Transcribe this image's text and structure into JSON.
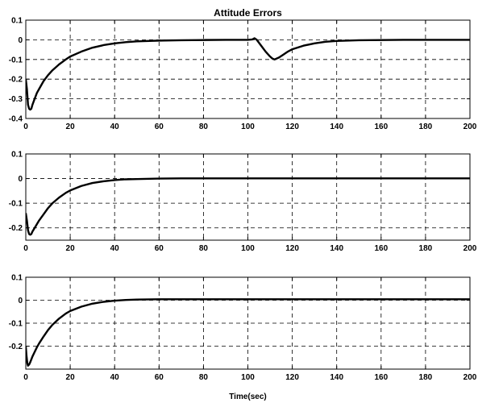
{
  "chart_data": [
    {
      "type": "line",
      "title": "Attitude Errors",
      "xlabel": "",
      "ylabel": "",
      "xlim": [
        0,
        200
      ],
      "ylim": [
        -0.4,
        0.1
      ],
      "xticks": [
        0,
        20,
        40,
        60,
        80,
        100,
        120,
        140,
        160,
        180,
        200
      ],
      "yticks": [
        0.1,
        0,
        -0.1,
        -0.2,
        -0.3,
        -0.4
      ],
      "ytick_labels": [
        "0.1",
        "0",
        "-0.1",
        "-0.2",
        "-0.3",
        "-0.4"
      ],
      "grid": true,
      "series": [
        {
          "color": "#000000",
          "x": [
            0,
            0.5,
            1,
            1.5,
            2,
            2.5,
            3,
            4,
            5,
            6,
            8,
            10,
            12,
            15,
            18,
            20,
            25,
            30,
            35,
            40,
            45,
            50,
            60,
            70,
            80,
            90,
            100,
            102,
            103,
            104,
            106,
            108,
            110,
            111,
            112,
            114,
            116,
            118,
            120,
            125,
            130,
            135,
            140,
            150,
            160,
            170,
            180,
            190,
            200
          ],
          "y": [
            -0.2,
            -0.25,
            -0.33,
            -0.35,
            -0.355,
            -0.35,
            -0.33,
            -0.3,
            -0.27,
            -0.25,
            -0.21,
            -0.18,
            -0.155,
            -0.125,
            -0.1,
            -0.085,
            -0.06,
            -0.04,
            -0.027,
            -0.018,
            -0.012,
            -0.008,
            -0.004,
            -0.002,
            -0.001,
            0,
            0,
            0.002,
            0.008,
            0,
            -0.03,
            -0.06,
            -0.085,
            -0.095,
            -0.1,
            -0.09,
            -0.075,
            -0.06,
            -0.048,
            -0.03,
            -0.018,
            -0.01,
            -0.006,
            -0.002,
            -0.001,
            0,
            0,
            0,
            0
          ]
        }
      ]
    },
    {
      "type": "line",
      "title": "",
      "xlabel": "",
      "ylabel": "",
      "xlim": [
        0,
        200
      ],
      "ylim": [
        -0.25,
        0.1
      ],
      "xticks": [
        0,
        20,
        40,
        60,
        80,
        100,
        120,
        140,
        160,
        180,
        200
      ],
      "yticks": [
        0.1,
        0,
        -0.1,
        -0.2
      ],
      "ytick_labels": [
        "0.1",
        "0",
        "-0.1",
        "-0.2"
      ],
      "grid": true,
      "series": [
        {
          "color": "#000000",
          "x": [
            0,
            0.5,
            1,
            1.5,
            2,
            2.5,
            3,
            4,
            5,
            6,
            8,
            10,
            12,
            15,
            18,
            20,
            25,
            30,
            35,
            40,
            45,
            50,
            60,
            70,
            80,
            100,
            120,
            140,
            160,
            180,
            200
          ],
          "y": [
            -0.14,
            -0.17,
            -0.21,
            -0.225,
            -0.228,
            -0.225,
            -0.215,
            -0.2,
            -0.185,
            -0.17,
            -0.145,
            -0.12,
            -0.1,
            -0.077,
            -0.058,
            -0.048,
            -0.03,
            -0.018,
            -0.011,
            -0.006,
            -0.003,
            -0.002,
            0,
            0.001,
            0.001,
            0.001,
            0.001,
            0.001,
            0.001,
            0.001,
            0.001
          ]
        }
      ]
    },
    {
      "type": "line",
      "title": "",
      "xlabel": "Time(sec)",
      "ylabel": "",
      "xlim": [
        0,
        200
      ],
      "ylim": [
        -0.3,
        0.1
      ],
      "xticks": [
        0,
        20,
        40,
        60,
        80,
        100,
        120,
        140,
        160,
        180,
        200
      ],
      "yticks": [
        0.1,
        0,
        -0.1,
        -0.2
      ],
      "ytick_labels": [
        "0.1",
        "0",
        "-0.1",
        "-0.2"
      ],
      "grid": true,
      "series": [
        {
          "color": "#000000",
          "x": [
            0,
            0.3,
            0.7,
            1,
            1.5,
            2,
            3,
            4,
            5,
            6,
            8,
            10,
            12,
            15,
            18,
            20,
            25,
            30,
            35,
            40,
            45,
            50,
            60,
            70,
            80,
            100,
            120,
            140,
            160,
            180,
            200
          ],
          "y": [
            -0.2,
            -0.24,
            -0.275,
            -0.285,
            -0.28,
            -0.27,
            -0.245,
            -0.225,
            -0.205,
            -0.188,
            -0.158,
            -0.13,
            -0.107,
            -0.08,
            -0.058,
            -0.047,
            -0.028,
            -0.015,
            -0.007,
            -0.002,
            0.001,
            0.003,
            0.004,
            0.004,
            0.004,
            0.004,
            0.004,
            0.004,
            0.004,
            0.004,
            0.004
          ]
        }
      ]
    }
  ]
}
